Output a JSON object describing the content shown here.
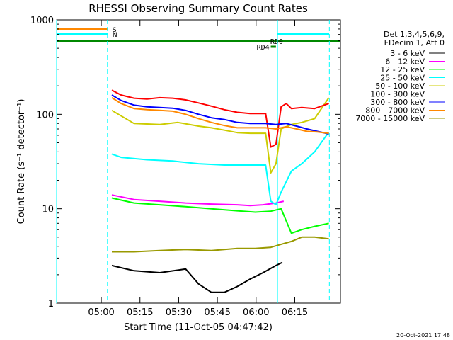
{
  "chart_data": {
    "type": "line",
    "title": "RHESSI Observing Summary Count Rates",
    "xlabel": "Start Time (11-Oct-05 04:47:42)",
    "ylabel": "Count Rate (s⁻¹ detector⁻¹)",
    "yscale": "log",
    "ylim": [
      1,
      1000
    ],
    "xlim_minutes": [
      -5,
      105
    ],
    "x_ticks": [
      {
        "t": 12.3,
        "label": "05:00"
      },
      {
        "t": 27.3,
        "label": "05:15"
      },
      {
        "t": 42.3,
        "label": "05:30"
      },
      {
        "t": 57.3,
        "label": "05:45"
      },
      {
        "t": 72.3,
        "label": "06:00"
      },
      {
        "t": 87.3,
        "label": "06:15"
      }
    ],
    "y_ticks": [
      {
        "v": 1,
        "label": "1"
      },
      {
        "v": 10,
        "label": "10"
      },
      {
        "v": 100,
        "label": "100"
      },
      {
        "v": 1000,
        "label": "1000"
      }
    ],
    "legend_header": [
      "Det 1,3,4,5,6,9,",
      "FDecim 1, Att 0"
    ],
    "legend_position": "right",
    "series": [
      {
        "name": "3 - 6 keV",
        "color": "#000000",
        "t": [
          16.4,
          25,
          35,
          45,
          50,
          55,
          60,
          65,
          70,
          75,
          80,
          82.5
        ],
        "values": [
          2.5,
          2.2,
          2.1,
          2.3,
          1.6,
          1.3,
          1.3,
          1.5,
          1.8,
          2.1,
          2.5,
          2.7
        ]
      },
      {
        "name": "6 - 12 keV",
        "color": "#ff00ff",
        "t": [
          16.4,
          25,
          35,
          45,
          55,
          65,
          70,
          75,
          80,
          83
        ],
        "values": [
          14,
          12.5,
          12,
          11.5,
          11.2,
          11,
          10.8,
          11,
          11.5,
          12
        ]
      },
      {
        "name": "12 - 25 keV",
        "color": "#00ff00",
        "t": [
          16.4,
          25,
          35,
          45,
          55,
          65,
          72,
          78,
          82,
          86,
          90,
          95,
          100.5
        ],
        "values": [
          13,
          11.5,
          11,
          10.5,
          10,
          9.5,
          9.2,
          9.4,
          10,
          5.5,
          6,
          6.5,
          7
        ]
      },
      {
        "name": "25 - 50 keV",
        "color": "#00ffff",
        "t": [
          16.4,
          20,
          30,
          40,
          50,
          60,
          70,
          76,
          78,
          80,
          82,
          86,
          90,
          95,
          100.5
        ],
        "values": [
          38,
          35,
          33,
          32,
          30,
          29,
          29,
          29,
          12,
          11,
          15,
          25,
          30,
          40,
          65
        ]
      },
      {
        "name": "50 - 100 keV",
        "color": "#cccc00",
        "t": [
          16.4,
          25,
          35,
          42,
          50,
          55,
          60,
          65,
          70,
          76,
          78,
          80,
          82,
          86,
          90,
          95,
          100.5
        ],
        "values": [
          110,
          80,
          78,
          82,
          75,
          72,
          68,
          64,
          63,
          63,
          24,
          30,
          70,
          78,
          82,
          90,
          150
        ]
      },
      {
        "name": "100 - 300 keV",
        "color": "#ff0000",
        "t": [
          16.4,
          20,
          25,
          30,
          35,
          40,
          45,
          50,
          55,
          60,
          65,
          70,
          76,
          78,
          80,
          82,
          84,
          86,
          90,
          95,
          100.5
        ],
        "values": [
          180,
          160,
          148,
          145,
          150,
          148,
          142,
          132,
          122,
          112,
          105,
          102,
          102,
          45,
          48,
          120,
          130,
          115,
          118,
          115,
          130
        ]
      },
      {
        "name": "300 - 800 keV",
        "color": "#0000ff",
        "t": [
          16.4,
          20,
          25,
          30,
          35,
          40,
          45,
          50,
          55,
          60,
          65,
          70,
          76,
          80,
          84,
          88,
          92,
          96,
          100.5
        ],
        "values": [
          160,
          140,
          125,
          120,
          118,
          116,
          110,
          100,
          92,
          88,
          82,
          80,
          80,
          78,
          80,
          75,
          70,
          66,
          62
        ]
      },
      {
        "name": "800 - 7000 keV",
        "color": "#ff8800",
        "t": [
          16.4,
          20,
          25,
          30,
          35,
          40,
          45,
          50,
          55,
          60,
          65,
          70,
          76,
          80,
          84,
          88,
          92,
          96,
          100.5
        ],
        "values": [
          150,
          130,
          115,
          112,
          110,
          108,
          100,
          90,
          82,
          76,
          72,
          72,
          72,
          70,
          74,
          70,
          66,
          65,
          63
        ]
      },
      {
        "name": "7000 - 15000 keV",
        "color": "#999900",
        "t": [
          16.4,
          25,
          35,
          45,
          55,
          65,
          72,
          78,
          82,
          86,
          90,
          95,
          100.5
        ],
        "values": [
          3.5,
          3.5,
          3.6,
          3.7,
          3.6,
          3.8,
          3.8,
          3.9,
          4.2,
          4.5,
          5,
          5,
          4.8
        ]
      }
    ],
    "flags": [
      {
        "label": "S",
        "color": "#ff8800",
        "t_start": -5,
        "t_end": 15
      },
      {
        "label": "N",
        "color": "#00ffff",
        "t_start": -5,
        "t_end": 15
      },
      {
        "label": "",
        "color": "#008800",
        "t_start": -5,
        "t_end": 105
      }
    ],
    "flag_annotations": [
      {
        "label": "RD4",
        "t": 78
      },
      {
        "label": "RD0",
        "t": 80
      }
    ],
    "vertical_markers": [
      {
        "t": -5,
        "color": "#00ffff",
        "style": "solid"
      },
      {
        "t": 14.7,
        "color": "#00ffff",
        "style": "dashed"
      },
      {
        "t": 80.6,
        "color": "#00ffff",
        "style": "solid"
      },
      {
        "t": 100.7,
        "color": "#00ffff",
        "style": "dashed"
      }
    ]
  },
  "footer": {
    "timestamp": "20-Oct-2021 17:48"
  }
}
